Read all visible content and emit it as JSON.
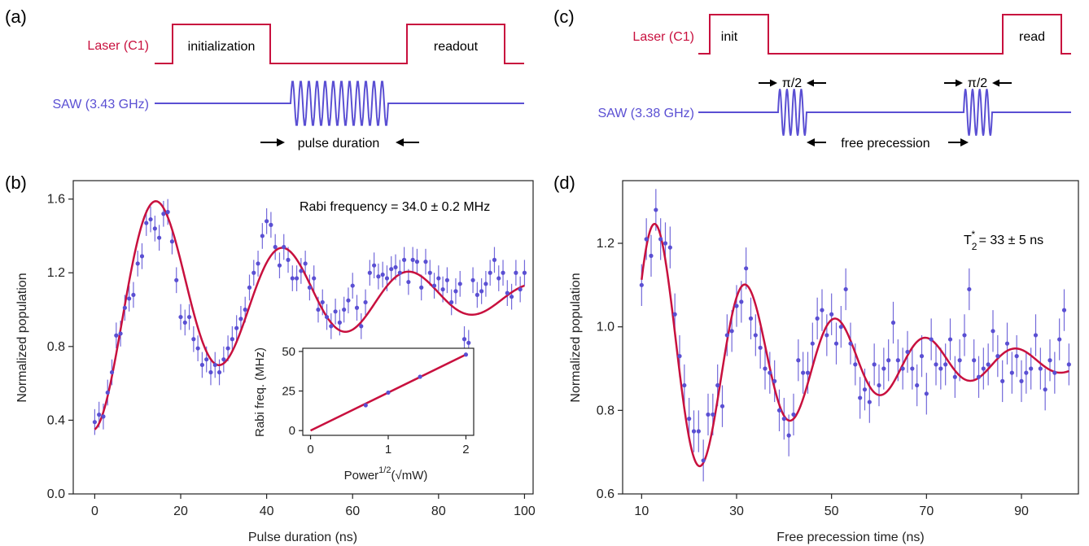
{
  "colors": {
    "laser": "#c8103e",
    "saw": "#5a4fd3",
    "fit": "#c8103e",
    "data": "#5a4fd3",
    "axis": "#222222",
    "arrow": "#000000"
  },
  "panel_labels": {
    "a": "(a)",
    "b": "(b)",
    "c": "(c)",
    "d": "(d)"
  },
  "schematic_a": {
    "laser_label": "Laser (C1)",
    "saw_label": "SAW (3.43 GHz)",
    "pulse1": "initialization",
    "pulse2": "readout",
    "duration_label": "pulse duration"
  },
  "schematic_c": {
    "laser_label": "Laser (C1)",
    "saw_label": "SAW (3.38 GHz)",
    "pulse1": "init",
    "pulse2": "read",
    "pi_half_1": "π/2",
    "pi_half_2": "π/2",
    "precession_label": "free precession"
  },
  "chart_data": [
    {
      "id": "b",
      "type": "scatter",
      "xlabel": "Pulse duration (ns)",
      "ylabel": "Normalized population",
      "annotation": "Rabi frequency = 34.0 ± 0.2 MHz",
      "xlim": [
        -5,
        102
      ],
      "ylim": [
        0,
        1.7
      ],
      "xticks": [
        "0",
        "20",
        "40",
        "60",
        "80",
        "100"
      ],
      "yticks": [
        "0.0",
        "0.4",
        "0.8",
        "1.2",
        "1.6"
      ],
      "points_x": [
        0,
        1,
        2,
        3,
        4,
        5,
        6,
        7,
        8,
        9,
        10,
        11,
        12,
        13,
        14,
        15,
        16,
        17,
        18,
        19,
        20,
        21,
        22,
        23,
        24,
        25,
        26,
        27,
        28,
        29,
        30,
        31,
        32,
        33,
        34,
        35,
        36,
        37,
        38,
        39,
        40,
        41,
        42,
        43,
        44,
        45,
        46,
        47,
        48,
        49,
        50,
        51,
        52,
        53,
        54,
        55,
        56,
        57,
        58,
        59,
        60,
        61,
        62,
        63,
        64,
        65,
        66,
        67,
        68,
        69,
        70,
        71,
        72,
        73,
        74,
        75,
        76,
        77,
        78,
        79,
        80,
        81,
        82,
        83,
        84,
        85,
        86,
        87,
        88,
        89,
        90,
        91,
        92,
        93,
        94,
        95,
        96,
        97,
        98,
        99,
        100
      ],
      "points_y": [
        0.39,
        0.43,
        0.42,
        0.55,
        0.66,
        0.86,
        0.87,
        1.01,
        1.06,
        1.08,
        1.25,
        1.29,
        1.47,
        1.49,
        1.44,
        1.39,
        1.52,
        1.53,
        1.37,
        1.16,
        0.96,
        0.93,
        0.96,
        0.84,
        0.79,
        0.7,
        0.73,
        0.66,
        0.7,
        0.66,
        0.73,
        0.79,
        0.84,
        0.9,
        0.95,
        1.0,
        1.12,
        1.2,
        1.25,
        1.4,
        1.48,
        1.46,
        1.34,
        1.24,
        1.34,
        1.27,
        1.17,
        1.17,
        1.21,
        1.25,
        1.12,
        1.17,
        1.0,
        1.04,
        0.96,
        0.91,
        0.99,
        0.93,
        1.0,
        1.05,
        1.13,
        1.01,
        0.91,
        1.04,
        1.2,
        1.24,
        1.18,
        1.19,
        1.17,
        1.22,
        1.23,
        1.2,
        1.27,
        1.15,
        1.27,
        1.26,
        1.12,
        1.26,
        1.2,
        1.13,
        1.17,
        1.11,
        1.16,
        1.04,
        1.1,
        1.14,
        0.84,
        0.82,
        1.16,
        1.08,
        1.1,
        1.14,
        1.2,
        1.27,
        1.17,
        1.2,
        1.09,
        1.07,
        1.2,
        1.11,
        1.2
      ],
      "error": 0.07,
      "fit": {
        "model": "damped-sine",
        "offset": 1.07,
        "amplitude": 0.72,
        "decay_ns": 44,
        "freq_mhz": 34.0
      },
      "inset": {
        "type": "scatter",
        "xlabel_main": "Power",
        "xlabel_sup": "1/2",
        "xlabel_unit": "(√mW)",
        "ylabel": "Rabi freq. (MHz)",
        "xlim": [
          -0.1,
          2.1
        ],
        "ylim": [
          -3,
          52
        ],
        "xticks": [
          "0",
          "1",
          "2"
        ],
        "yticks": [
          "0",
          "25",
          "50"
        ],
        "points_x": [
          0.71,
          1.0,
          1.41,
          2.0
        ],
        "points_y": [
          16,
          24,
          34,
          48
        ],
        "fit_slope": 24
      }
    },
    {
      "id": "d",
      "type": "scatter",
      "xlabel": "Free precession time (ns)",
      "ylabel": "Normalized population",
      "annotation_main": "T",
      "annotation_sub": "2",
      "annotation_sup": "*",
      "annotation_rest": " = 33 ± 5 ns",
      "xlim": [
        6,
        102
      ],
      "ylim": [
        0.6,
        1.35
      ],
      "xticks": [
        "10",
        "30",
        "50",
        "70",
        "90"
      ],
      "yticks": [
        "0.6",
        "0.8",
        "1.0",
        "1.2"
      ],
      "points_x": [
        10,
        11,
        12,
        13,
        14,
        15,
        16,
        17,
        18,
        19,
        20,
        21,
        22,
        23,
        24,
        25,
        26,
        27,
        28,
        29,
        30,
        31,
        32,
        33,
        34,
        35,
        36,
        37,
        38,
        39,
        40,
        41,
        42,
        43,
        44,
        45,
        46,
        47,
        48,
        49,
        50,
        51,
        52,
        53,
        54,
        55,
        56,
        57,
        58,
        59,
        60,
        61,
        62,
        63,
        64,
        65,
        66,
        67,
        68,
        69,
        70,
        71,
        72,
        73,
        74,
        75,
        76,
        77,
        78,
        79,
        80,
        81,
        82,
        83,
        84,
        85,
        86,
        87,
        88,
        89,
        90,
        91,
        92,
        93,
        94,
        95,
        96,
        97,
        98,
        99,
        100
      ],
      "points_y": [
        1.1,
        1.21,
        1.17,
        1.28,
        1.21,
        1.2,
        1.19,
        1.03,
        0.93,
        0.86,
        0.78,
        0.75,
        0.75,
        0.68,
        0.79,
        0.79,
        0.86,
        0.81,
        0.98,
        0.99,
        1.05,
        1.06,
        1.14,
        1.02,
        0.98,
        0.95,
        0.9,
        0.89,
        0.87,
        0.8,
        0.78,
        0.74,
        0.79,
        0.92,
        0.89,
        0.89,
        0.96,
        1.02,
        1.04,
        0.98,
        1.03,
        0.96,
        1.0,
        1.09,
        0.96,
        0.91,
        0.83,
        0.85,
        0.82,
        0.91,
        0.86,
        0.9,
        0.92,
        1.01,
        0.92,
        0.9,
        0.94,
        0.9,
        0.86,
        0.93,
        0.84,
        0.97,
        0.91,
        0.9,
        0.91,
        0.97,
        0.88,
        0.92,
        0.98,
        1.09,
        0.92,
        0.88,
        0.9,
        0.91,
        0.99,
        0.93,
        0.87,
        0.96,
        0.89,
        0.93,
        0.87,
        0.89,
        0.9,
        0.98,
        0.9,
        0.85,
        0.92,
        0.89,
        0.97,
        1.04,
        0.91
      ],
      "error": 0.05,
      "fit": {
        "model": "damped-cosine",
        "offset": 0.915,
        "amplitude": 0.33,
        "decay_ns": 33,
        "period_ns": 19
      }
    }
  ]
}
